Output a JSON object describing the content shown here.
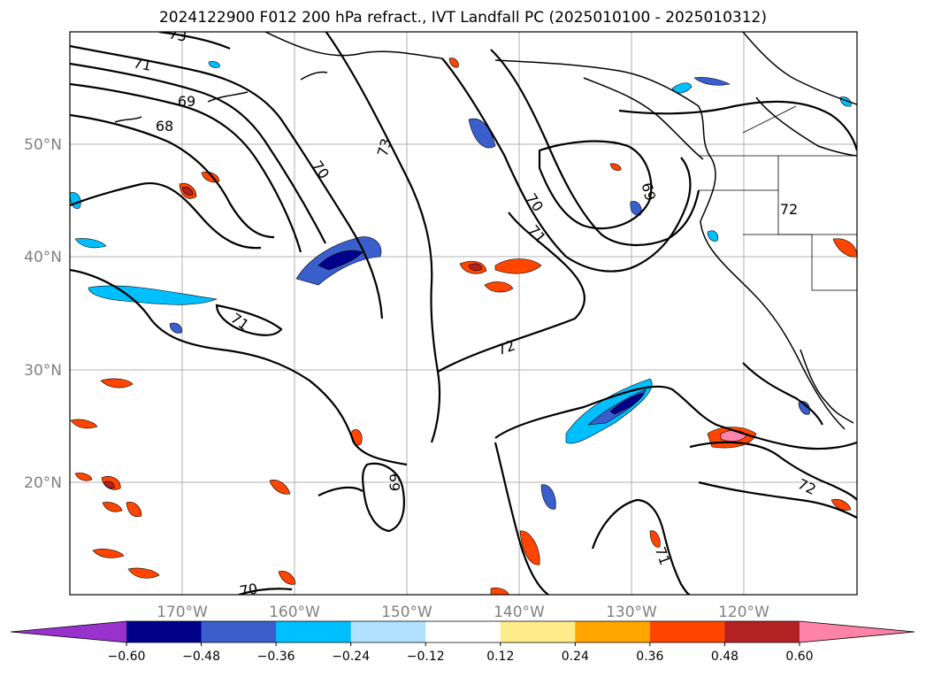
{
  "title": "2024122900 F012 200 hPa refract., IVT Landfall PC (2025010100 - 2025010312)",
  "map": {
    "lat_ticks": [
      "50°N",
      "40°N",
      "30°N",
      "20°N"
    ],
    "lon_ticks": [
      "170°W",
      "160°W",
      "150°W",
      "140°W",
      "130°W",
      "120°W"
    ],
    "contour_labels": [
      "73",
      "71",
      "69",
      "68",
      "70",
      "73",
      "70",
      "71",
      "69",
      "72",
      "71",
      "72",
      "70",
      "69",
      "71",
      "72"
    ]
  },
  "colorbar": {
    "ticks": [
      "−0.60",
      "−0.48",
      "−0.36",
      "−0.24",
      "−0.12",
      "0.12",
      "0.24",
      "0.36",
      "0.48",
      "0.60"
    ],
    "colors": [
      "#9932cc",
      "#00008b",
      "#3a5fcd",
      "#00bfff",
      "#b0e2ff",
      "#ffffff",
      "#ffec8b",
      "#ffa500",
      "#ff4500",
      "#b22222",
      "#ff82ab"
    ]
  }
}
